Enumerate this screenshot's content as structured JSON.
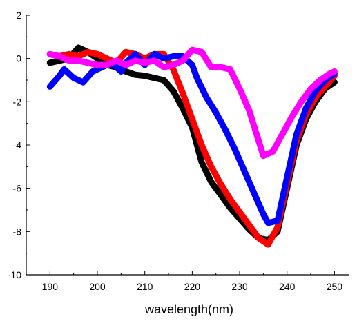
{
  "chart_data": {
    "type": "line",
    "title": "",
    "xlabel": "wavelength(nm)",
    "ylabel": "",
    "xlim": [
      185,
      253
    ],
    "ylim": [
      -10,
      2
    ],
    "xticks": [
      190,
      200,
      210,
      220,
      230,
      240,
      250
    ],
    "yticks": [
      2,
      0,
      -2,
      -4,
      -6,
      -8,
      -10
    ],
    "grid": false,
    "legend": "none",
    "series": [
      {
        "color": "#000000",
        "points": [
          [
            190,
            -0.2
          ],
          [
            192,
            -0.1
          ],
          [
            194,
            0.0
          ],
          [
            196,
            0.5
          ],
          [
            198,
            0.3
          ],
          [
            200,
            0.0
          ],
          [
            202,
            -0.3
          ],
          [
            204,
            -0.4
          ],
          [
            206,
            -0.6
          ],
          [
            208,
            -0.75
          ],
          [
            210,
            -0.8
          ],
          [
            212,
            -0.9
          ],
          [
            214,
            -1.0
          ],
          [
            216,
            -1.5
          ],
          [
            218,
            -2.3
          ],
          [
            220,
            -3.2
          ],
          [
            222,
            -4.8
          ],
          [
            224,
            -5.7
          ],
          [
            226,
            -6.3
          ],
          [
            228,
            -6.9
          ],
          [
            230,
            -7.4
          ],
          [
            232,
            -7.9
          ],
          [
            234,
            -8.3
          ],
          [
            236,
            -8.4
          ],
          [
            238,
            -8.0
          ],
          [
            240,
            -6.0
          ],
          [
            242,
            -4.0
          ],
          [
            244,
            -2.8
          ],
          [
            246,
            -2.0
          ],
          [
            248,
            -1.4
          ],
          [
            250,
            -1.1
          ]
        ]
      },
      {
        "color": "#ff0000",
        "points": [
          [
            190,
            0.2
          ],
          [
            192,
            0.1
          ],
          [
            194,
            0.2
          ],
          [
            196,
            0.1
          ],
          [
            198,
            0.3
          ],
          [
            200,
            0.2
          ],
          [
            202,
            0.0
          ],
          [
            204,
            -0.2
          ],
          [
            206,
            0.3
          ],
          [
            208,
            0.2
          ],
          [
            210,
            0.0
          ],
          [
            212,
            0.2
          ],
          [
            214,
            0.2
          ],
          [
            216,
            -0.5
          ],
          [
            218,
            -1.6
          ],
          [
            220,
            -2.8
          ],
          [
            222,
            -4.0
          ],
          [
            224,
            -5.0
          ],
          [
            226,
            -5.8
          ],
          [
            228,
            -6.5
          ],
          [
            230,
            -7.1
          ],
          [
            232,
            -7.7
          ],
          [
            234,
            -8.3
          ],
          [
            236,
            -8.6
          ],
          [
            238,
            -7.8
          ],
          [
            240,
            -5.8
          ],
          [
            242,
            -3.8
          ],
          [
            244,
            -2.6
          ],
          [
            246,
            -1.8
          ],
          [
            248,
            -1.3
          ],
          [
            250,
            -0.8
          ]
        ]
      },
      {
        "color": "#0000ff",
        "points": [
          [
            190,
            -1.3
          ],
          [
            192,
            -0.8
          ],
          [
            193,
            -0.5
          ],
          [
            195,
            -0.9
          ],
          [
            197,
            -1.1
          ],
          [
            199,
            -0.6
          ],
          [
            201,
            -0.4
          ],
          [
            203,
            -0.2
          ],
          [
            205,
            -0.6
          ],
          [
            206,
            -0.2
          ],
          [
            208,
            0.2
          ],
          [
            210,
            -0.3
          ],
          [
            212,
            0.2
          ],
          [
            214,
            0.0
          ],
          [
            216,
            0.1
          ],
          [
            218,
            0.1
          ],
          [
            220,
            -0.3
          ],
          [
            221,
            -0.9
          ],
          [
            223,
            -1.8
          ],
          [
            225,
            -2.5
          ],
          [
            227,
            -3.3
          ],
          [
            229,
            -4.2
          ],
          [
            231,
            -5.2
          ],
          [
            233,
            -6.2
          ],
          [
            235,
            -7.2
          ],
          [
            236,
            -7.6
          ],
          [
            238,
            -7.5
          ],
          [
            240,
            -5.5
          ],
          [
            242,
            -3.5
          ],
          [
            244,
            -2.3
          ],
          [
            246,
            -1.5
          ],
          [
            248,
            -1.0
          ],
          [
            250,
            -0.7
          ]
        ]
      },
      {
        "color": "#ff00ff",
        "points": [
          [
            190,
            0.2
          ],
          [
            192,
            0.1
          ],
          [
            194,
            -0.1
          ],
          [
            196,
            -0.1
          ],
          [
            198,
            -0.2
          ],
          [
            200,
            -0.3
          ],
          [
            202,
            -0.3
          ],
          [
            204,
            -0.1
          ],
          [
            206,
            -0.3
          ],
          [
            208,
            -0.1
          ],
          [
            210,
            -0.2
          ],
          [
            212,
            -0.1
          ],
          [
            214,
            -0.4
          ],
          [
            216,
            -0.3
          ],
          [
            218,
            -0.1
          ],
          [
            220,
            0.4
          ],
          [
            222,
            0.3
          ],
          [
            224,
            -0.4
          ],
          [
            226,
            -0.4
          ],
          [
            228,
            -0.5
          ],
          [
            230,
            -1.4
          ],
          [
            232,
            -2.4
          ],
          [
            234,
            -3.8
          ],
          [
            235,
            -4.5
          ],
          [
            237,
            -4.3
          ],
          [
            239,
            -3.5
          ],
          [
            241,
            -2.7
          ],
          [
            243,
            -2.0
          ],
          [
            245,
            -1.4
          ],
          [
            247,
            -1.0
          ],
          [
            249,
            -0.7
          ],
          [
            250,
            -0.6
          ]
        ]
      }
    ]
  }
}
